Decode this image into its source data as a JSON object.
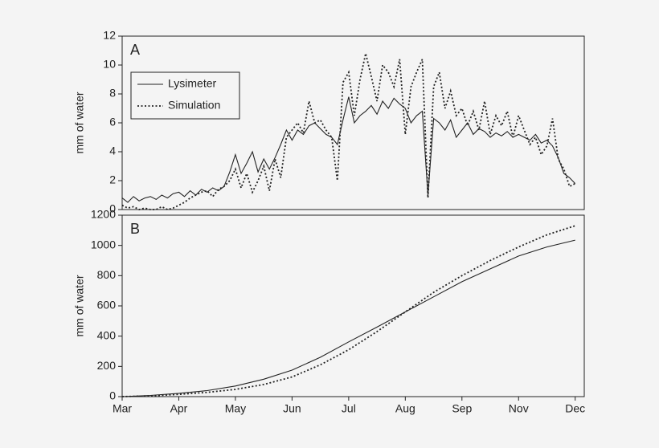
{
  "chart_data": [
    {
      "type": "line",
      "annotation": "A",
      "ylabel": "mm of water",
      "legend": "upper left",
      "xlim": [
        0,
        8.16
      ],
      "ylim": [
        0,
        12
      ],
      "yticks": [
        0,
        2,
        4,
        6,
        8,
        10,
        12
      ],
      "x": [
        0,
        0.1,
        0.2,
        0.3,
        0.4,
        0.5,
        0.6,
        0.7,
        0.8,
        0.9,
        1,
        1.1,
        1.2,
        1.3,
        1.4,
        1.5,
        1.6,
        1.7,
        1.8,
        1.9,
        2,
        2.1,
        2.2,
        2.3,
        2.4,
        2.5,
        2.6,
        2.7,
        2.8,
        2.9,
        3,
        3.1,
        3.2,
        3.3,
        3.4,
        3.5,
        3.6,
        3.7,
        3.8,
        3.9,
        4,
        4.1,
        4.2,
        4.3,
        4.4,
        4.5,
        4.6,
        4.7,
        4.8,
        4.9,
        5,
        5.1,
        5.2,
        5.3,
        5.4,
        5.5,
        5.6,
        5.7,
        5.8,
        5.9,
        6,
        6.1,
        6.2,
        6.3,
        6.4,
        6.5,
        6.6,
        6.7,
        6.8,
        6.9,
        7,
        7.1,
        7.2,
        7.3,
        7.4,
        7.5,
        7.6,
        7.7,
        7.8,
        7.9,
        8
      ],
      "series": [
        {
          "name": "Lysimeter",
          "color": "#222222",
          "line_style": "solid",
          "values": [
            0.8,
            0.5,
            0.9,
            0.6,
            0.8,
            0.9,
            0.7,
            1.0,
            0.8,
            1.1,
            1.2,
            0.9,
            1.3,
            1.0,
            1.4,
            1.2,
            1.5,
            1.3,
            1.6,
            2.6,
            3.8,
            2.5,
            3.2,
            4.0,
            2.6,
            3.5,
            2.8,
            3.6,
            4.5,
            5.5,
            4.8,
            5.5,
            5.2,
            5.8,
            6.0,
            5.6,
            5.2,
            5.0,
            4.5,
            6.2,
            7.8,
            6.0,
            6.5,
            6.8,
            7.2,
            6.6,
            7.5,
            7.0,
            7.7,
            7.3,
            7.0,
            6.0,
            6.5,
            6.8,
            1.0,
            6.3,
            6.0,
            5.5,
            6.2,
            5.0,
            5.5,
            6.0,
            5.2,
            5.6,
            5.4,
            5.0,
            5.3,
            5.1,
            5.4,
            5.0,
            5.2,
            5.0,
            4.8,
            5.2,
            4.6,
            4.8,
            4.4,
            3.6,
            2.5,
            2.2,
            1.8
          ]
        },
        {
          "name": "Simulation",
          "color": "#222222",
          "line_style": "dotted",
          "values": [
            0.3,
            0.1,
            0.2,
            0.0,
            0.1,
            0.0,
            0.0,
            0.2,
            0.0,
            0.1,
            0.3,
            0.5,
            0.8,
            1.0,
            1.2,
            1.3,
            0.9,
            1.4,
            1.6,
            2.0,
            2.8,
            1.5,
            2.5,
            1.2,
            2.0,
            3.0,
            1.3,
            3.5,
            2.2,
            5.0,
            5.5,
            6.0,
            5.3,
            7.5,
            6.0,
            6.2,
            5.5,
            5.0,
            2.0,
            8.8,
            9.5,
            6.5,
            9.0,
            10.8,
            9.2,
            7.5,
            10.0,
            9.5,
            8.5,
            10.4,
            5.2,
            8.5,
            9.5,
            10.4,
            0.8,
            8.5,
            9.5,
            7.0,
            8.2,
            6.5,
            7.0,
            5.8,
            6.8,
            5.5,
            7.5,
            5.2,
            6.5,
            5.8,
            6.8,
            5.0,
            6.5,
            5.5,
            4.5,
            5.0,
            3.8,
            4.4,
            6.3,
            3.5,
            2.8,
            1.6,
            1.8
          ]
        }
      ]
    },
    {
      "type": "line",
      "annotation": "B",
      "ylabel": "mm of water",
      "xlim": [
        0,
        8.16
      ],
      "ylim": [
        0,
        1200
      ],
      "yticks": [
        0,
        200,
        400,
        600,
        800,
        1000,
        1200
      ],
      "xticks": [
        {
          "value": 0,
          "label": "Mar"
        },
        {
          "value": 1,
          "label": "Apr"
        },
        {
          "value": 2,
          "label": "May"
        },
        {
          "value": 3,
          "label": "Jun"
        },
        {
          "value": 4,
          "label": "Jul"
        },
        {
          "value": 5,
          "label": "Aug"
        },
        {
          "value": 6,
          "label": "Sep"
        },
        {
          "value": 7,
          "label": "Nov"
        },
        {
          "value": 8,
          "label": "Dec"
        }
      ],
      "x": [
        0,
        0.5,
        1,
        1.5,
        2,
        2.5,
        3,
        3.5,
        4,
        4.5,
        5,
        5.5,
        6,
        6.5,
        7,
        7.5,
        8
      ],
      "series": [
        {
          "name": "Lysimeter",
          "color": "#222222",
          "line_style": "solid",
          "values": [
            0,
            8,
            22,
            40,
            70,
            115,
            175,
            260,
            362,
            460,
            560,
            660,
            760,
            845,
            930,
            990,
            1035
          ]
        },
        {
          "name": "Simulation",
          "color": "#222222",
          "line_style": "dotted",
          "values": [
            0,
            5,
            15,
            28,
            48,
            80,
            130,
            210,
            310,
            430,
            560,
            690,
            800,
            900,
            990,
            1070,
            1130
          ]
        }
      ]
    }
  ]
}
